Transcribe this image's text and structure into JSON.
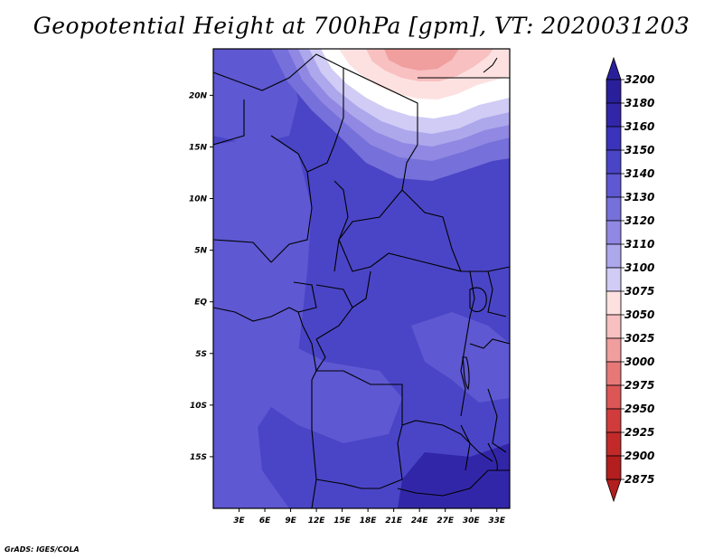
{
  "title": "Geopotential Height at 700hPa [gpm], VT: 2020031203",
  "credit": "GrADS: IGES/COLA",
  "chart_data": {
    "type": "heatmap",
    "title": "Geopotential Height at 700hPa [gpm], VT: 2020031203",
    "variable": "Geopotential Height at 700hPa",
    "units": "gpm",
    "valid_time": "2020031203",
    "x_range_deg": [
      0,
      34.5
    ],
    "y_range_deg": [
      -20,
      24.5
    ],
    "x_ticks": [
      {
        "value": 3,
        "label": "3E"
      },
      {
        "value": 6,
        "label": "6E"
      },
      {
        "value": 9,
        "label": "9E"
      },
      {
        "value": 12,
        "label": "12E"
      },
      {
        "value": 15,
        "label": "15E"
      },
      {
        "value": 18,
        "label": "18E"
      },
      {
        "value": 21,
        "label": "21E"
      },
      {
        "value": 24,
        "label": "24E"
      },
      {
        "value": 27,
        "label": "27E"
      },
      {
        "value": 30,
        "label": "30E"
      },
      {
        "value": 33,
        "label": "33E"
      }
    ],
    "y_ticks": [
      {
        "value": 20,
        "label": "20N"
      },
      {
        "value": 15,
        "label": "15N"
      },
      {
        "value": 10,
        "label": "10N"
      },
      {
        "value": 5,
        "label": "5N"
      },
      {
        "value": 0,
        "label": "EQ"
      },
      {
        "value": -5,
        "label": "5S"
      },
      {
        "value": -10,
        "label": "10S"
      },
      {
        "value": -15,
        "label": "15S"
      }
    ],
    "colorbar": {
      "labels": [
        "3200",
        "3180",
        "3160",
        "3150",
        "3140",
        "3130",
        "3120",
        "3110",
        "3100",
        "3075",
        "3050",
        "3025",
        "3000",
        "2975",
        "2950",
        "2925",
        "2900",
        "2875"
      ],
      "colors": [
        "#2a1f9a",
        "#3226a8",
        "#3a33bb",
        "#4a45c6",
        "#5e58d2",
        "#7670da",
        "#9088e2",
        "#ada7ec",
        "#d0ccf5",
        "#ffffff",
        "#fde1e1",
        "#f8c0c0",
        "#f09e9e",
        "#e67878",
        "#dc5656",
        "#d03c3c",
        "#c22a2a",
        "#b31e1e"
      ]
    },
    "regions": [
      {
        "name": "high-3200",
        "value": 3200,
        "color": "#2a1f9a"
      },
      {
        "name": "high-3180",
        "value": 3180,
        "color": "#3226a8"
      },
      {
        "name": "ne-dark",
        "value": 3160,
        "color": "#3a33bb"
      },
      {
        "name": "central",
        "value": 3150,
        "color": "#4a45c6"
      },
      {
        "name": "west-band",
        "value": 3140,
        "color": "#5e58d2"
      },
      {
        "name": "ring-3130",
        "value": 3130,
        "color": "#7670da"
      },
      {
        "name": "ring-3120",
        "value": 3120,
        "color": "#9088e2"
      },
      {
        "name": "ring-3110",
        "value": 3110,
        "color": "#ada7ec"
      },
      {
        "name": "ring-3100",
        "value": 3100,
        "color": "#d0ccf5"
      },
      {
        "name": "ring-3075",
        "value": 3075,
        "color": "#ffffff"
      },
      {
        "name": "ring-3050",
        "value": 3050,
        "color": "#fde1e1"
      },
      {
        "name": "core-3025",
        "value": 3025,
        "color": "#f8c0c0"
      },
      {
        "name": "core-3000",
        "value": 3000,
        "color": "#f09e9e"
      }
    ]
  }
}
